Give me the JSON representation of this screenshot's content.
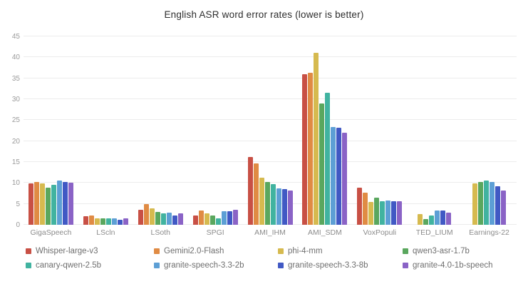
{
  "chart_data": {
    "type": "bar",
    "title": "English ASR word error rates (lower is better)",
    "categories": [
      "GigaSpeech",
      "LScln",
      "LSoth",
      "SPGI",
      "AMI_IHM",
      "AMI_SDM",
      "VoxPopuli",
      "TED_LIUM",
      "Earnings-22"
    ],
    "series": [
      {
        "name": "Whisper-large-v3",
        "color": "#c85045",
        "values": [
          9.9,
          2.0,
          3.6,
          2.2,
          16.2,
          36.0,
          8.8,
          null,
          null
        ]
      },
      {
        "name": "Gemini2.0-Flash",
        "color": "#e08b44",
        "values": [
          10.3,
          2.3,
          5.0,
          3.4,
          14.7,
          36.3,
          7.7,
          null,
          null
        ]
      },
      {
        "name": "phi-4-mm",
        "color": "#d6ba4f",
        "values": [
          9.9,
          1.6,
          3.9,
          2.7,
          11.3,
          41.0,
          5.5,
          2.6,
          9.9
        ]
      },
      {
        "name": "qwen3-asr-1.7b",
        "color": "#5aa75e",
        "values": [
          8.8,
          1.6,
          3.1,
          2.3,
          10.2,
          29.0,
          6.4,
          1.4,
          10.2
        ]
      },
      {
        "name": "canary-qwen-2.5b",
        "color": "#41b3a0",
        "values": [
          9.5,
          1.5,
          2.8,
          1.5,
          9.8,
          31.5,
          5.6,
          2.3,
          10.5
        ]
      },
      {
        "name": "granite-speech-3.3-2b",
        "color": "#5d9fd5",
        "values": [
          10.6,
          1.6,
          2.9,
          3.3,
          8.7,
          23.3,
          5.8,
          3.4,
          10.2
        ]
      },
      {
        "name": "granite-speech-3.3-8b",
        "color": "#4159c4",
        "values": [
          10.2,
          1.2,
          2.3,
          3.3,
          8.6,
          23.2,
          5.6,
          3.4,
          9.2
        ]
      },
      {
        "name": "granite-4.0-1b-speech",
        "color": "#8a63c6",
        "values": [
          10.1,
          1.5,
          2.8,
          3.6,
          8.1,
          22.0,
          5.6,
          2.9,
          8.2
        ]
      }
    ],
    "ylim": [
      0,
      45
    ],
    "yticks": [
      0,
      5,
      10,
      15,
      20,
      25,
      30,
      35,
      40,
      45
    ],
    "xlabel": "",
    "ylabel": "",
    "grid": "horizontal",
    "legend_position": "bottom",
    "gridline_color": "#ececec"
  }
}
